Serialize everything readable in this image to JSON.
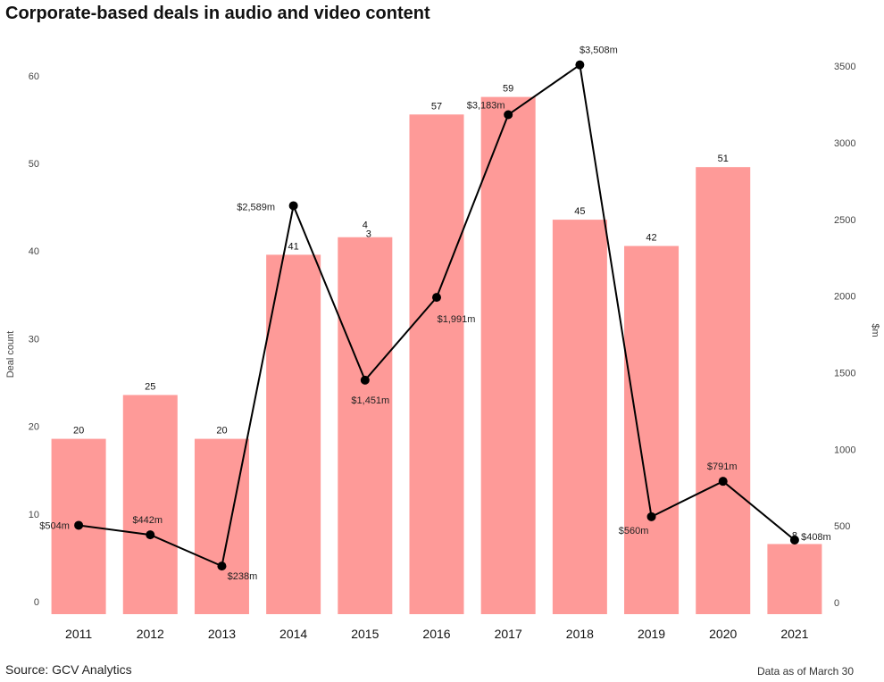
{
  "chart_data": {
    "type": "bar",
    "title": "Corporate-based deals in audio and video content",
    "categories": [
      "2011",
      "2012",
      "2013",
      "2014",
      "2015",
      "2016",
      "2017",
      "2018",
      "2019",
      "2020",
      "2021"
    ],
    "series": [
      {
        "name": "Deal count",
        "type": "bar",
        "axis": "left",
        "color": "#fe9a98",
        "values": [
          20,
          25,
          20,
          41,
          43,
          57,
          59,
          45,
          42,
          51,
          8
        ],
        "labels": [
          "20",
          "25",
          "20",
          "41",
          "4\n3",
          "57",
          "59",
          "45",
          "42",
          "51",
          "8"
        ]
      },
      {
        "name": "$m",
        "type": "line",
        "axis": "right",
        "color": "#000000",
        "values": [
          504,
          442,
          238,
          2589,
          1451,
          1991,
          3183,
          3508,
          560,
          791,
          408
        ],
        "labels": [
          "$504m",
          "$442m",
          "$238m",
          "$2,589m",
          "$1,451m",
          "$1,991m",
          "$3,183m",
          "$3,508m",
          "$560m",
          "$791m",
          "$408m"
        ]
      }
    ],
    "ylabel": "Deal count",
    "y2label": "$m",
    "ylim": [
      0,
      62.5
    ],
    "y2lim": [
      0,
      3560
    ],
    "yticks": [
      "0",
      "10",
      "20",
      "30",
      "40",
      "50",
      "60"
    ],
    "y2ticks": [
      "0",
      "500",
      "1000",
      "1500",
      "2000",
      "2500",
      "3000",
      "3500"
    ],
    "grid": false
  },
  "footer": {
    "source": "Source: GCV Analytics",
    "note": "Data as of March 30"
  }
}
